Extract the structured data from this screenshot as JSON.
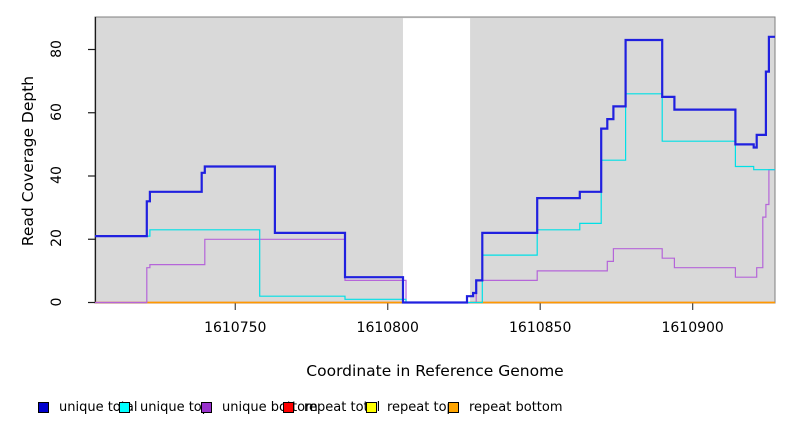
{
  "chart": {
    "x_title": "Coordinate in Reference Genome",
    "y_title": "Read Coverage Depth"
  },
  "chart_data": {
    "type": "line",
    "step": "after",
    "title": "",
    "xlabel": "Coordinate in Reference Genome",
    "ylabel": "Read Coverage Depth",
    "xlim": [
      1610704,
      1610927
    ],
    "ylim": [
      0,
      88
    ],
    "x_ticks": [
      1610750,
      1610800,
      1610850,
      1610900
    ],
    "y_ticks": [
      0,
      20,
      40,
      60,
      80
    ],
    "grid": false,
    "legend_position": "bottom",
    "plot_background": "#D9D9D9",
    "plot_border_color": "#7F7F7F",
    "gap_region": {
      "x_start": 1610805,
      "x_end": 1610827,
      "color": "#FFFFFF"
    },
    "series": [
      {
        "name": "repeat top",
        "color": "#FFFF00",
        "width": 1.2,
        "points": [
          [
            1610704,
            0
          ]
        ]
      },
      {
        "name": "repeat total",
        "color": "#F00020",
        "width": 1.2,
        "points": [
          [
            1610704,
            0
          ]
        ]
      },
      {
        "name": "repeat bottom",
        "color": "#FF9900",
        "width": 1.4,
        "points": [
          [
            1610721,
            0
          ]
        ],
        "gaps": [
          [
            1610805,
            1610827
          ]
        ]
      },
      {
        "name": "unique bottom",
        "color": "#B565D9",
        "width": 1.2,
        "points": [
          [
            1610704,
            0
          ],
          [
            1610721,
            11
          ],
          [
            1610722,
            12
          ],
          [
            1610740,
            20
          ],
          [
            1610786,
            7
          ],
          [
            1610806,
            0
          ],
          [
            1610829,
            7
          ],
          [
            1610849,
            10
          ],
          [
            1610872,
            13
          ],
          [
            1610874,
            17
          ],
          [
            1610890,
            14
          ],
          [
            1610894,
            11
          ],
          [
            1610914,
            8
          ],
          [
            1610921,
            11
          ],
          [
            1610923,
            27
          ],
          [
            1610924,
            31
          ],
          [
            1610925,
            42
          ]
        ]
      },
      {
        "name": "unique top",
        "color": "#00E0E6",
        "width": 1.2,
        "points": [
          [
            1610704,
            21
          ],
          [
            1610722,
            23
          ],
          [
            1610758,
            2
          ],
          [
            1610786,
            1
          ],
          [
            1610806,
            0
          ],
          [
            1610831,
            15
          ],
          [
            1610849,
            23
          ],
          [
            1610863,
            25
          ],
          [
            1610870,
            45
          ],
          [
            1610878,
            66
          ],
          [
            1610890,
            51
          ],
          [
            1610914,
            43
          ],
          [
            1610920,
            42
          ]
        ]
      },
      {
        "name": "unique total",
        "color": "#2020DF",
        "width": 2.2,
        "points": [
          [
            1610704,
            21
          ],
          [
            1610721,
            32
          ],
          [
            1610722,
            35
          ],
          [
            1610739,
            41
          ],
          [
            1610740,
            43
          ],
          [
            1610763,
            22
          ],
          [
            1610786,
            8
          ],
          [
            1610805,
            0
          ],
          [
            1610826,
            2
          ],
          [
            1610828,
            3
          ],
          [
            1610829,
            7
          ],
          [
            1610831,
            22
          ],
          [
            1610849,
            33
          ],
          [
            1610863,
            35
          ],
          [
            1610870,
            55
          ],
          [
            1610872,
            58
          ],
          [
            1610874,
            62
          ],
          [
            1610878,
            83
          ],
          [
            1610890,
            65
          ],
          [
            1610894,
            61
          ],
          [
            1610914,
            50
          ],
          [
            1610920,
            49
          ],
          [
            1610921,
            53
          ],
          [
            1610924,
            73
          ],
          [
            1610925,
            84
          ]
        ]
      }
    ]
  },
  "legend": {
    "items": [
      {
        "label": "unique total",
        "color": "#0000CD"
      },
      {
        "label": "unique top",
        "color": "#00FFFF"
      },
      {
        "label": "unique bottom",
        "color": "#9932CC"
      },
      {
        "label": "repeat total",
        "color": "#FF0000"
      },
      {
        "label": "repeat top",
        "color": "#FFFF00"
      },
      {
        "label": "repeat bottom",
        "color": "#FFA500"
      }
    ],
    "item_lefts": [
      38,
      119,
      201,
      283,
      366,
      448
    ]
  }
}
